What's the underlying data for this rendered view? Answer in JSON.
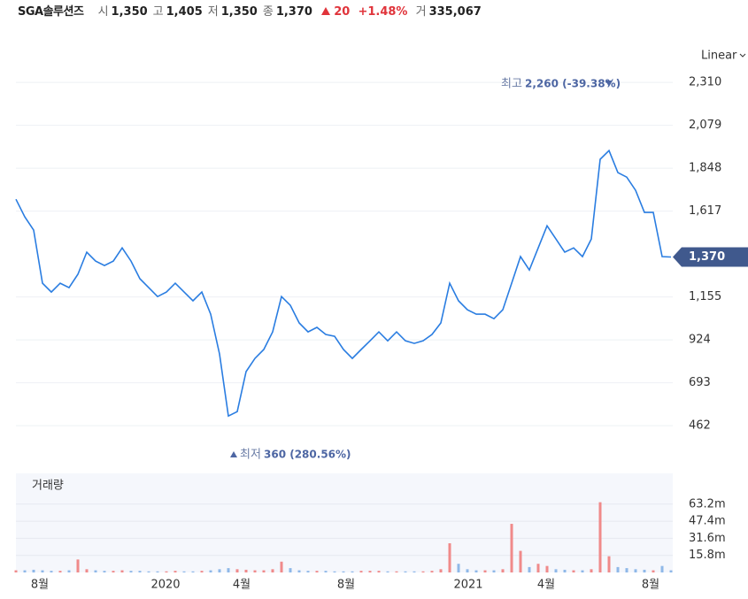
{
  "header": {
    "name": "SGA솔루션즈",
    "items": [
      {
        "label": "시",
        "value": "1,350"
      },
      {
        "label": "고",
        "value": "1,405"
      },
      {
        "label": "저",
        "value": "1,350"
      },
      {
        "label": "종",
        "value": "1,370"
      }
    ],
    "change": "20",
    "change_pct": "+1.48%",
    "volume_label": "거",
    "volume": "335,067"
  },
  "chart_data": {
    "type": "line",
    "scale_label": "Linear",
    "series": [
      {
        "name": "SGA솔루션즈",
        "color": "#2a7de1",
        "values": [
          1681,
          1586,
          1515,
          1229,
          1181,
          1229,
          1205,
          1277,
          1396,
          1348,
          1324,
          1348,
          1419,
          1348,
          1253,
          1205,
          1157,
          1181,
          1229,
          1181,
          1134,
          1181,
          1062,
          848,
          514,
          538,
          753,
          824,
          872,
          967,
          1157,
          1110,
          1015,
          967,
          991,
          953,
          943,
          872,
          824,
          872,
          919,
          967,
          919,
          967,
          919,
          905,
          919,
          953,
          1015,
          1229,
          1134,
          1086,
          1062,
          1062,
          1038,
          1086,
          1229,
          1372,
          1300,
          1419,
          1538,
          1467,
          1396,
          1419,
          1372,
          1467,
          1896,
          1943,
          1824,
          1800,
          1729,
          1610,
          1610,
          1372,
          1370
        ]
      }
    ],
    "xlim": [
      0,
      74
    ],
    "xticks": [
      {
        "value": 2.7,
        "label": "8월"
      },
      {
        "value": 16.9,
        "label": "2020"
      },
      {
        "value": 25.5,
        "label": "4월"
      },
      {
        "value": 37.3,
        "label": "8월"
      },
      {
        "value": 51.1,
        "label": "2021"
      },
      {
        "value": 59.9,
        "label": "4월"
      },
      {
        "value": 71.7,
        "label": "8월"
      }
    ],
    "ylim": [
      253,
      2420
    ],
    "yticks": [
      {
        "value": 2310,
        "label": "2,310"
      },
      {
        "value": 2079,
        "label": "2,079"
      },
      {
        "value": 1848,
        "label": "1,848"
      },
      {
        "value": 1617,
        "label": "1,617"
      },
      {
        "value": 1155,
        "label": "1,155"
      },
      {
        "value": 924,
        "label": "924"
      },
      {
        "value": 693,
        "label": "693"
      },
      {
        "value": 462,
        "label": "462"
      }
    ],
    "grid": true,
    "current": {
      "value": 1370,
      "label": "1,370",
      "color": "#40598d"
    },
    "high": {
      "label": "최고",
      "text": "2,260 (-39.38%)"
    },
    "low": {
      "label": "최저",
      "text": "360 (280.56%)"
    },
    "volume": {
      "name": "거래량",
      "up_color": "#f08a8a",
      "down_color": "#8fb8e8",
      "values": [
        2000000,
        2000000,
        2500000,
        2000000,
        1500000,
        1500000,
        2000000,
        12000000,
        3000000,
        2000000,
        1500000,
        1500000,
        2000000,
        1500000,
        1500000,
        1000000,
        1000000,
        1000000,
        1500000,
        1000000,
        1000000,
        1500000,
        2000000,
        3000000,
        4000000,
        3000000,
        2500000,
        2000000,
        2000000,
        3000000,
        10000000,
        4000000,
        2000000,
        1500000,
        1500000,
        1500000,
        1000000,
        1000000,
        1000000,
        1500000,
        1500000,
        1500000,
        1000000,
        1000000,
        1000000,
        1000000,
        1000000,
        1500000,
        3000000,
        27000000,
        8000000,
        3000000,
        2000000,
        2000000,
        2000000,
        3000000,
        45000000,
        20000000,
        5000000,
        8000000,
        6000000,
        3000000,
        2500000,
        2000000,
        2000000,
        3000000,
        65000000,
        15000000,
        5000000,
        4000000,
        3000000,
        2500000,
        2000000,
        6000000,
        2000000
      ],
      "ylim": [
        0,
        91700000
      ],
      "yticks": [
        {
          "value": 63200000,
          "label": "63.2m"
        },
        {
          "value": 47400000,
          "label": "47.4m"
        },
        {
          "value": 31600000,
          "label": "31.6m"
        },
        {
          "value": 15800000,
          "label": "15.8m"
        }
      ]
    }
  }
}
